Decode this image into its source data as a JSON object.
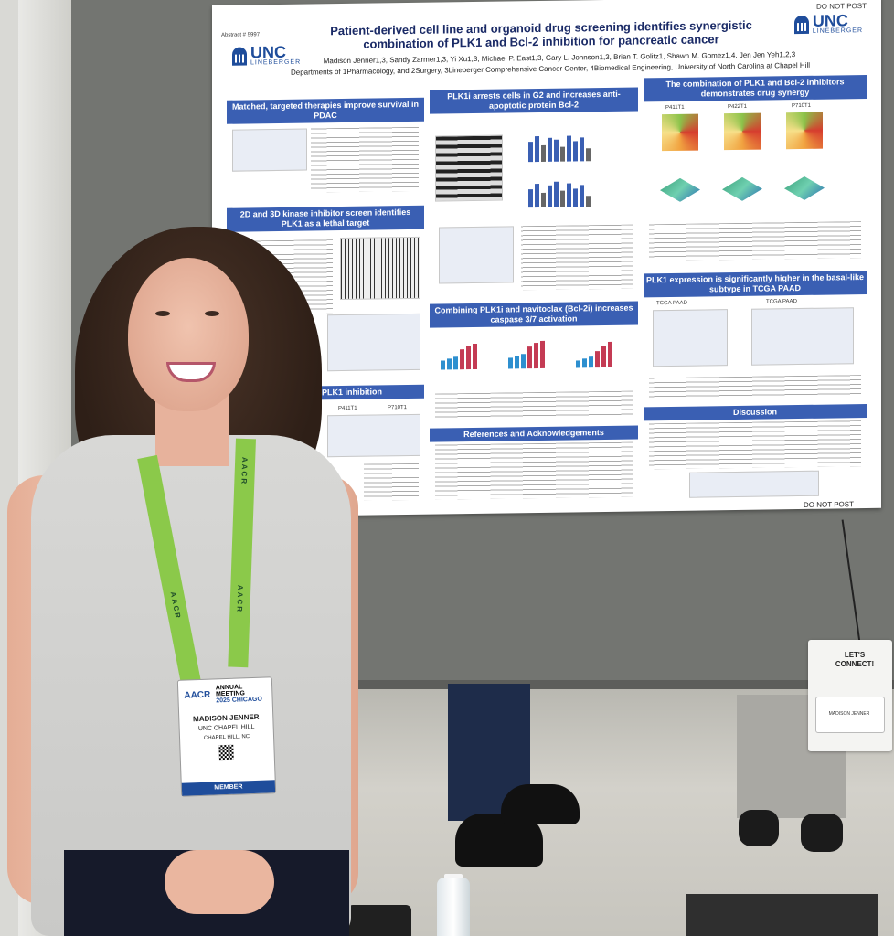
{
  "poster": {
    "abstract_no": "Abstract # 5997",
    "do_not_post_top": "DO NOT POST",
    "do_not_post_bottom": "DO NOT POST",
    "title_line1": "Patient-derived cell line and organoid drug screening identifies synergistic",
    "title_line2": "combination of PLK1 and Bcl-2 inhibition for pancreatic cancer",
    "authors": "Madison Jenner1,3, Sandy Zarmer1,3, Yi Xu1,3, Michael P. East1,3, Gary L. Johnson1,3, Brian T. Golitz1, Shawn M. Gomez1,4, Jen Jen Yeh1,2,3",
    "affiliations": "Departments of 1Pharmacology, and 2Surgery, 3Lineberger Comprehensive Cancer Center, 4Biomedical Engineering, University of North Carolina at Chapel Hill",
    "logo_unc": "UNC",
    "logo_lineberger": "LINEBERGER",
    "sections": {
      "s1": "Matched, targeted therapies improve survival in PDAC",
      "s2": "2D and 3D kinase inhibitor screen identifies PLK1 as a lethal target",
      "s3": "PLK1i arrests cells in G2 and increases anti-apoptotic protein Bcl-2",
      "s4": "Combining PLK1i and navitoclax (Bcl-2i) increases caspase 3/7 activation",
      "s5": "References and Acknowledgements",
      "s6": "The combination of PLK1 and Bcl-2 inhibitors demonstrates drug synergy",
      "s7": "PLK1 expression is significantly higher in the basal-like subtype in TCGA PAAD",
      "s8": "Discussion",
      "s9": "phenocopies PLK1 inhibition"
    },
    "cell_lines": [
      "P411T1",
      "P422T1",
      "P710T1"
    ],
    "tcga_label": "TCGA PAAD"
  },
  "bag": {
    "text_line1": "LET'S",
    "text_line2": "CONNECT!",
    "name": "MADISON JENNER"
  },
  "badge": {
    "org": "AACR",
    "event_line1": "ANNUAL",
    "event_line2": "MEETING",
    "event_line3": "2025 CHICAGO",
    "name": "MADISON JENNER",
    "institution": "UNC CHAPEL HILL",
    "location": "CHAPEL HILL, NC",
    "member": "MEMBER"
  },
  "lanyard": {
    "text": "AACR"
  },
  "colors": {
    "poster_header": "#3a5fb3",
    "unc_blue": "#1f4d9b",
    "lanyard_green": "#8bc94a"
  }
}
